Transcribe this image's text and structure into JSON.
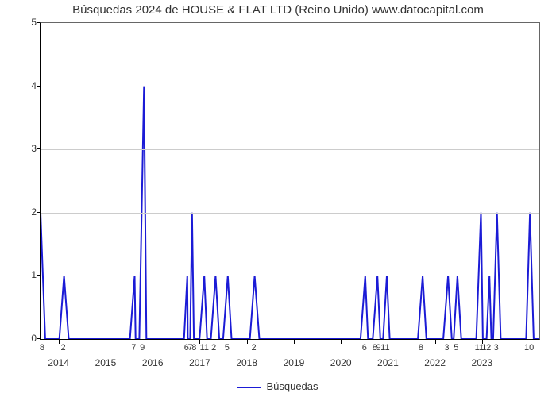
{
  "title": "Búsquedas 2024 de HOUSE & FLAT LTD (Reino Unido) www.datocapital.com",
  "legend_label": "Búsquedas",
  "chart": {
    "type": "line",
    "line_color": "#1b1bd6",
    "line_width": 2,
    "background_color": "#ffffff",
    "grid_color": "#cccccc",
    "axis_color": "#000000",
    "title_fontsize": 15,
    "tick_fontsize": 12,
    "ylim": [
      0,
      5
    ],
    "yticks": [
      0,
      1,
      2,
      3,
      4,
      5
    ],
    "x_domain": [
      2013.6,
      2024.2
    ],
    "x_years": [
      2014,
      2015,
      2016,
      2017,
      2018,
      2019,
      2020,
      2021,
      2022,
      2023
    ],
    "value_labels": [
      {
        "x": 2013.65,
        "t": "8"
      },
      {
        "x": 2014.1,
        "t": "2"
      },
      {
        "x": 2015.6,
        "t": "7"
      },
      {
        "x": 2015.78,
        "t": "9"
      },
      {
        "x": 2016.72,
        "t": "6"
      },
      {
        "x": 2016.8,
        "t": "7"
      },
      {
        "x": 2016.88,
        "t": "8"
      },
      {
        "x": 2017.1,
        "t": "11"
      },
      {
        "x": 2017.3,
        "t": "2"
      },
      {
        "x": 2017.58,
        "t": "5"
      },
      {
        "x": 2018.15,
        "t": "2"
      },
      {
        "x": 2020.5,
        "t": "6"
      },
      {
        "x": 2020.72,
        "t": "8"
      },
      {
        "x": 2020.8,
        "t": "9"
      },
      {
        "x": 2020.94,
        "t": "11"
      },
      {
        "x": 2021.7,
        "t": "8"
      },
      {
        "x": 2022.25,
        "t": "3"
      },
      {
        "x": 2022.45,
        "t": "5"
      },
      {
        "x": 2022.94,
        "t": "11"
      },
      {
        "x": 2023.04,
        "t": "1"
      },
      {
        "x": 2023.14,
        "t": "2"
      },
      {
        "x": 2023.3,
        "t": "3"
      },
      {
        "x": 2024.0,
        "t": "10"
      }
    ],
    "series": [
      {
        "x": 2013.6,
        "y": 2.0
      },
      {
        "x": 2013.7,
        "y": 0.0
      },
      {
        "x": 2014.0,
        "y": 0.0
      },
      {
        "x": 2014.1,
        "y": 1.0
      },
      {
        "x": 2014.2,
        "y": 0.0
      },
      {
        "x": 2015.5,
        "y": 0.0
      },
      {
        "x": 2015.6,
        "y": 1.0
      },
      {
        "x": 2015.62,
        "y": 0.0
      },
      {
        "x": 2015.7,
        "y": 0.0
      },
      {
        "x": 2015.8,
        "y": 4.0
      },
      {
        "x": 2015.85,
        "y": 0.0
      },
      {
        "x": 2016.65,
        "y": 0.0
      },
      {
        "x": 2016.72,
        "y": 1.0
      },
      {
        "x": 2016.73,
        "y": 0.0
      },
      {
        "x": 2016.78,
        "y": 0.0
      },
      {
        "x": 2016.82,
        "y": 2.0
      },
      {
        "x": 2016.86,
        "y": 0.0
      },
      {
        "x": 2016.98,
        "y": 0.0
      },
      {
        "x": 2017.08,
        "y": 1.0
      },
      {
        "x": 2017.14,
        "y": 0.0
      },
      {
        "x": 2017.22,
        "y": 0.0
      },
      {
        "x": 2017.32,
        "y": 1.0
      },
      {
        "x": 2017.4,
        "y": 0.0
      },
      {
        "x": 2017.48,
        "y": 0.0
      },
      {
        "x": 2017.58,
        "y": 1.0
      },
      {
        "x": 2017.66,
        "y": 0.0
      },
      {
        "x": 2018.05,
        "y": 0.0
      },
      {
        "x": 2018.15,
        "y": 1.0
      },
      {
        "x": 2018.25,
        "y": 0.0
      },
      {
        "x": 2020.4,
        "y": 0.0
      },
      {
        "x": 2020.5,
        "y": 1.0
      },
      {
        "x": 2020.56,
        "y": 0.0
      },
      {
        "x": 2020.66,
        "y": 0.0
      },
      {
        "x": 2020.76,
        "y": 1.0
      },
      {
        "x": 2020.82,
        "y": 0.0
      },
      {
        "x": 2020.88,
        "y": 0.0
      },
      {
        "x": 2020.96,
        "y": 1.0
      },
      {
        "x": 2021.02,
        "y": 0.0
      },
      {
        "x": 2021.62,
        "y": 0.0
      },
      {
        "x": 2021.72,
        "y": 1.0
      },
      {
        "x": 2021.8,
        "y": 0.0
      },
      {
        "x": 2022.16,
        "y": 0.0
      },
      {
        "x": 2022.26,
        "y": 1.0
      },
      {
        "x": 2022.34,
        "y": 0.0
      },
      {
        "x": 2022.38,
        "y": 0.0
      },
      {
        "x": 2022.46,
        "y": 1.0
      },
      {
        "x": 2022.54,
        "y": 0.0
      },
      {
        "x": 2022.86,
        "y": 0.0
      },
      {
        "x": 2022.96,
        "y": 2.0
      },
      {
        "x": 2023.0,
        "y": 0.0
      },
      {
        "x": 2023.08,
        "y": 0.0
      },
      {
        "x": 2023.14,
        "y": 1.0
      },
      {
        "x": 2023.18,
        "y": 0.0
      },
      {
        "x": 2023.22,
        "y": 0.0
      },
      {
        "x": 2023.3,
        "y": 2.0
      },
      {
        "x": 2023.38,
        "y": 0.0
      },
      {
        "x": 2023.92,
        "y": 0.0
      },
      {
        "x": 2024.0,
        "y": 2.0
      },
      {
        "x": 2024.08,
        "y": 0.0
      },
      {
        "x": 2024.2,
        "y": 0.0
      }
    ]
  }
}
